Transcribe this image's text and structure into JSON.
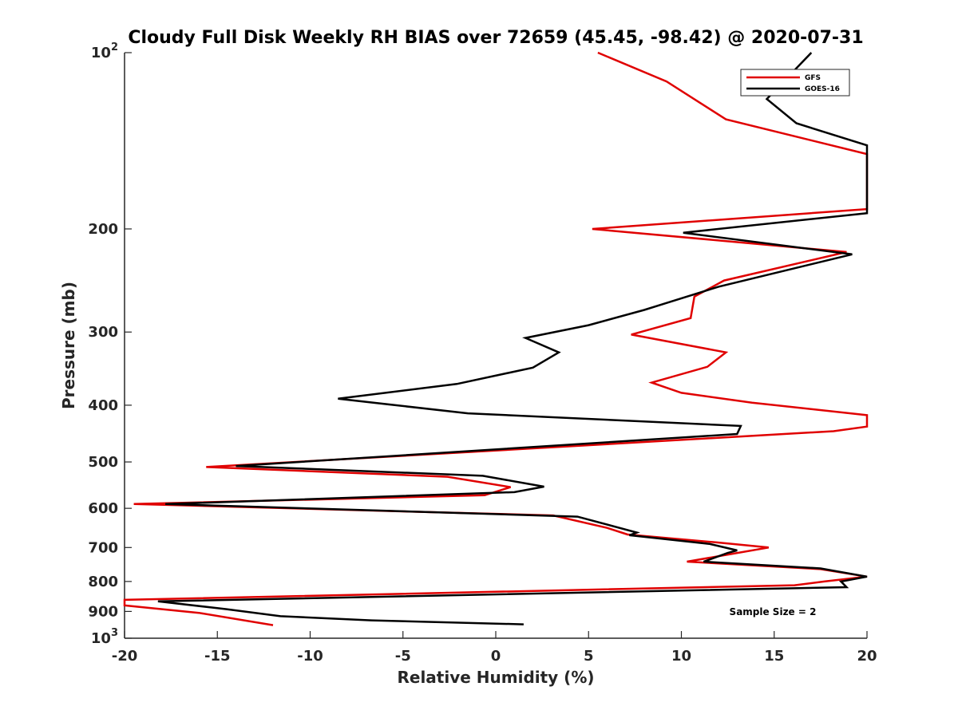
{
  "chart_data": {
    "type": "line",
    "title": "Cloudy Full Disk Weekly RH BIAS over 72659 (45.45, -98.42) @ 2020-07-31",
    "xlabel": "Relative Humidity (%)",
    "ylabel": "Pressure (mb)",
    "xlim": [
      -20,
      20
    ],
    "ylim": [
      100,
      1000
    ],
    "yscale": "log",
    "yreversed": true,
    "grid": false,
    "legend_position": "top-right",
    "x_ticks": [
      "-20",
      "-15",
      "-10",
      "-5",
      "0",
      "5",
      "10",
      "15",
      "20"
    ],
    "y_ticks": [
      {
        "value": 100,
        "label": "10",
        "sup": "2"
      },
      {
        "value": 200,
        "label": "200",
        "sup": ""
      },
      {
        "value": 300,
        "label": "300",
        "sup": ""
      },
      {
        "value": 400,
        "label": "400",
        "sup": ""
      },
      {
        "value": 500,
        "label": "500",
        "sup": ""
      },
      {
        "value": 600,
        "label": "600",
        "sup": ""
      },
      {
        "value": 700,
        "label": "700",
        "sup": ""
      },
      {
        "value": 800,
        "label": "800",
        "sup": ""
      },
      {
        "value": 900,
        "label": "900",
        "sup": ""
      },
      {
        "value": 1000,
        "label": "10",
        "sup": "3"
      }
    ],
    "series": [
      {
        "name": "GFS",
        "color": "#e00000",
        "points": [
          [
            5.5,
            100
          ],
          [
            9.2,
            112
          ],
          [
            12.4,
            130
          ],
          [
            20.0,
            149
          ],
          [
            20.0,
            185
          ],
          [
            5.2,
            200
          ],
          [
            18.9,
            219
          ],
          [
            12.3,
            245
          ],
          [
            10.7,
            261
          ],
          [
            10.5,
            284
          ],
          [
            7.3,
            303
          ],
          [
            12.4,
            325
          ],
          [
            11.4,
            344
          ],
          [
            8.4,
            366
          ],
          [
            10.0,
            381
          ],
          [
            13.8,
            396
          ],
          [
            20.0,
            416
          ],
          [
            20.0,
            435
          ],
          [
            18.2,
            443
          ],
          [
            -15.6,
            510
          ],
          [
            -2.6,
            530
          ],
          [
            0.8,
            552
          ],
          [
            -0.6,
            570
          ],
          [
            -19.5,
            590
          ],
          [
            3.1,
            617
          ],
          [
            6.0,
            648
          ],
          [
            7.1,
            665
          ],
          [
            11.9,
            686
          ],
          [
            14.7,
            700
          ],
          [
            12.7,
            718
          ],
          [
            10.3,
            740
          ],
          [
            17.5,
            762
          ],
          [
            20.0,
            785
          ],
          [
            17.7,
            800
          ],
          [
            16.1,
            812
          ],
          [
            -20.0,
            860
          ],
          [
            -20.0,
            879
          ],
          [
            -16.0,
            905
          ],
          [
            -12.0,
            950
          ]
        ]
      },
      {
        "name": "GOES-16",
        "color": "#000000",
        "points": [
          [
            17.0,
            100
          ],
          [
            14.6,
            120
          ],
          [
            16.2,
            132
          ],
          [
            20.0,
            144
          ],
          [
            20.0,
            188
          ],
          [
            10.1,
            203
          ],
          [
            19.2,
            221
          ],
          [
            12.0,
            251
          ],
          [
            8.0,
            275
          ],
          [
            5.0,
            292
          ],
          [
            1.6,
            307
          ],
          [
            3.4,
            325
          ],
          [
            2.0,
            345
          ],
          [
            -2.1,
            368
          ],
          [
            -8.5,
            390
          ],
          [
            -1.5,
            413
          ],
          [
            13.2,
            434
          ],
          [
            13.0,
            448
          ],
          [
            -14.0,
            508
          ],
          [
            -0.7,
            528
          ],
          [
            2.6,
            551
          ],
          [
            1.0,
            563
          ],
          [
            -17.8,
            590
          ],
          [
            4.4,
            620
          ],
          [
            7.6,
            660
          ],
          [
            7.2,
            667
          ],
          [
            11.5,
            690
          ],
          [
            13.0,
            708
          ],
          [
            12.5,
            715
          ],
          [
            11.2,
            740
          ],
          [
            17.5,
            760
          ],
          [
            20.0,
            785
          ],
          [
            18.6,
            800
          ],
          [
            18.9,
            818
          ],
          [
            -18.2,
            865
          ],
          [
            -14.5,
            892
          ],
          [
            -11.6,
            917
          ],
          [
            -6.7,
            932
          ],
          [
            1.5,
            947
          ]
        ]
      }
    ],
    "annotation": "Sample Size = 2"
  }
}
